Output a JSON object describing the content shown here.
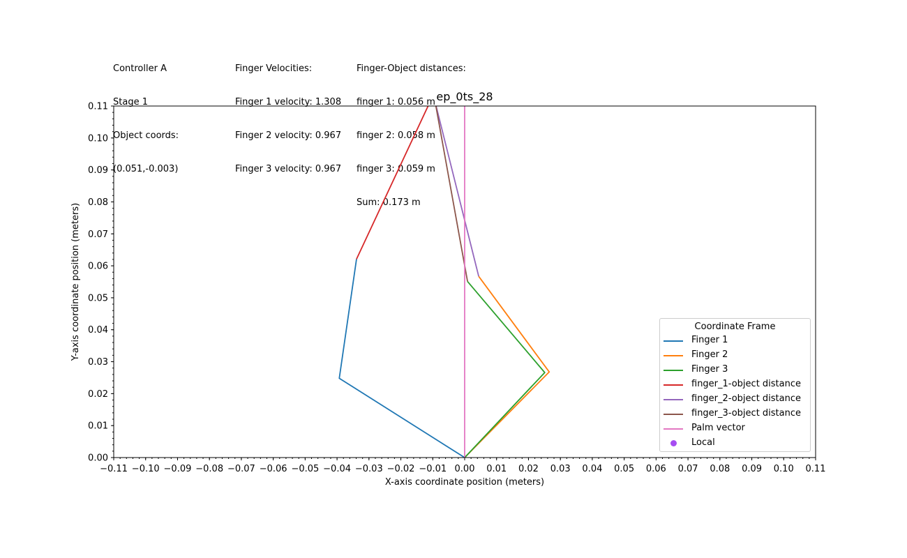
{
  "info": {
    "controller": "Controller A",
    "stage": "Stage 1",
    "object_coords_label": "Object coords:",
    "object_coords_value": "(0.051,-0.003)",
    "velocities_title": "Finger Velocities:",
    "finger1_velocity": "Finger 1 velocity: 1.308",
    "finger2_velocity": "Finger 2 velocity: 0.967",
    "finger3_velocity": "Finger 3 velocity: 0.967",
    "distances_title": "Finger-Object distances:",
    "finger1_distance": "finger 1: 0.056 m",
    "finger2_distance": "finger 2: 0.058 m",
    "finger3_distance": "finger 3: 0.059 m",
    "distance_sum": "Sum: 0.173 m"
  },
  "chart_data": {
    "type": "line",
    "title": "ep_0ts_28",
    "xlabel": "X-axis coordinate position (meters)",
    "ylabel": "Y-axis coordinate position (meters)",
    "xlim": [
      -0.11,
      0.11
    ],
    "ylim": [
      0.0,
      0.11
    ],
    "xticks": [
      -0.11,
      -0.1,
      -0.09,
      -0.08,
      -0.07,
      -0.06,
      -0.05,
      -0.04,
      -0.03,
      -0.02,
      -0.01,
      0.0,
      0.01,
      0.02,
      0.03,
      0.04,
      0.05,
      0.06,
      0.07,
      0.08,
      0.09,
      0.1,
      0.11
    ],
    "xtick_labels": [
      "−0.11",
      "−0.10",
      "−0.09",
      "−0.08",
      "−0.07",
      "−0.06",
      "−0.05",
      "−0.04",
      "−0.03",
      "−0.02",
      "−0.01",
      "0.00",
      "0.01",
      "0.02",
      "0.03",
      "0.04",
      "0.05",
      "0.06",
      "0.07",
      "0.08",
      "0.09",
      "0.10",
      "0.11"
    ],
    "yticks": [
      0.0,
      0.01,
      0.02,
      0.03,
      0.04,
      0.05,
      0.06,
      0.07,
      0.08,
      0.09,
      0.1,
      0.11
    ],
    "ytick_labels": [
      "0.00",
      "0.01",
      "0.02",
      "0.03",
      "0.04",
      "0.05",
      "0.06",
      "0.07",
      "0.08",
      "0.09",
      "0.10",
      "0.11"
    ],
    "grid": false,
    "legend_title": "Coordinate Frame",
    "legend_position": "lower-right",
    "series": [
      {
        "name": "Finger 1",
        "color": "#1f77b4",
        "x": [
          0.0,
          -0.0393,
          -0.0339
        ],
        "y": [
          0.0,
          0.0248,
          0.0621
        ]
      },
      {
        "name": "Finger 2",
        "color": "#ff7f0e",
        "x": [
          0.0,
          0.0265,
          0.0044
        ],
        "y": [
          0.0,
          0.0268,
          0.0567
        ]
      },
      {
        "name": "Finger 3",
        "color": "#2ca02c",
        "x": [
          0.0,
          0.0251,
          0.0009
        ],
        "y": [
          0.0,
          0.0266,
          0.0551
        ]
      },
      {
        "name": "finger_1-object distance",
        "color": "#d62728",
        "x": [
          -0.0339,
          -0.011
        ],
        "y": [
          0.0621,
          0.111
        ]
      },
      {
        "name": "finger_2-object distance",
        "color": "#9467bd",
        "x": [
          0.0044,
          -0.0092
        ],
        "y": [
          0.0567,
          0.111
        ]
      },
      {
        "name": "finger_3-object distance",
        "color": "#8c564b",
        "x": [
          0.0009,
          -0.0092
        ],
        "y": [
          0.0551,
          0.111
        ]
      },
      {
        "name": "Palm vector",
        "color": "#e377c2",
        "x": [
          0.0,
          0.0
        ],
        "y": [
          0.0,
          0.111
        ]
      }
    ],
    "local_marker": {
      "name": "Local",
      "color": "#a64df2"
    }
  }
}
